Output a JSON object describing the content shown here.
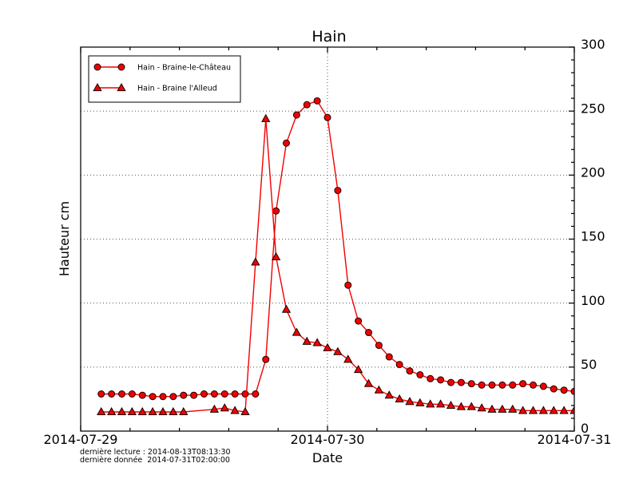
{
  "title": "Hain",
  "xlabel": "Date",
  "ylabel": "Hauteur cm",
  "footnotes": {
    "lecture": "dernière lecture : 2014-08-13T08:13:30",
    "donnee": "dernière donnée  2014-07-31T02:00:00"
  },
  "colors": {
    "series": "#f20000",
    "marker_fill": "#f20000",
    "marker_edge": "#1a0000",
    "grid": "#555555"
  },
  "chart_data": {
    "type": "line",
    "title": "Hain",
    "xlabel": "Date",
    "ylabel": "Hauteur cm",
    "x_unit": "hours since 2014-07-29T00:00:00",
    "xlim": [
      0,
      48
    ],
    "ylim": [
      0,
      300
    ],
    "x_ticks": [
      {
        "pos": 0,
        "label": "2014-07-29"
      },
      {
        "pos": 24,
        "label": "2014-07-30"
      },
      {
        "pos": 48,
        "label": "2014-07-31"
      }
    ],
    "y_ticks": [
      0,
      50,
      100,
      150,
      200,
      250,
      300
    ],
    "x_minor_step": 4.8,
    "y_minor_step": 10,
    "grid": "dotted",
    "legend_position": "upper left",
    "series": [
      {
        "name": "Hain - Braine-le-Château",
        "marker": "circle",
        "points": [
          [
            2,
            29
          ],
          [
            3,
            29
          ],
          [
            4,
            29
          ],
          [
            5,
            29
          ],
          [
            6,
            28
          ],
          [
            7,
            27
          ],
          [
            8,
            27
          ],
          [
            9,
            27
          ],
          [
            10,
            28
          ],
          [
            11,
            28
          ],
          [
            12,
            29
          ],
          [
            13,
            29
          ],
          [
            14,
            29
          ],
          [
            15,
            29
          ],
          [
            16,
            29
          ],
          [
            17,
            29
          ],
          [
            18,
            56
          ],
          [
            19,
            172
          ],
          [
            20,
            225
          ],
          [
            21,
            247
          ],
          [
            22,
            255
          ],
          [
            23,
            258
          ],
          [
            24,
            245
          ],
          [
            25,
            188
          ],
          [
            26,
            114
          ],
          [
            27,
            86
          ],
          [
            28,
            77
          ],
          [
            29,
            67
          ],
          [
            30,
            58
          ],
          [
            31,
            52
          ],
          [
            32,
            47
          ],
          [
            33,
            44
          ],
          [
            34,
            41
          ],
          [
            35,
            40
          ],
          [
            36,
            38
          ],
          [
            37,
            38
          ],
          [
            38,
            37
          ],
          [
            39,
            36
          ],
          [
            40,
            36
          ],
          [
            41,
            36
          ],
          [
            42,
            36
          ],
          [
            43,
            37
          ],
          [
            44,
            36
          ],
          [
            45,
            35
          ],
          [
            46,
            33
          ],
          [
            47,
            32
          ],
          [
            48,
            31
          ]
        ]
      },
      {
        "name": "Hain - Braine l'Alleud",
        "marker": "triangle",
        "points": [
          [
            2,
            15
          ],
          [
            3,
            15
          ],
          [
            4,
            15
          ],
          [
            5,
            15
          ],
          [
            6,
            15
          ],
          [
            7,
            15
          ],
          [
            8,
            15
          ],
          [
            9,
            15
          ],
          [
            10,
            15
          ],
          [
            13,
            17
          ],
          [
            14,
            18
          ],
          [
            15,
            16
          ],
          [
            16,
            15
          ],
          [
            17,
            132
          ],
          [
            18,
            244
          ],
          [
            19,
            136
          ],
          [
            20,
            95
          ],
          [
            21,
            77
          ],
          [
            22,
            70
          ],
          [
            23,
            69
          ],
          [
            24,
            65
          ],
          [
            25,
            62
          ],
          [
            26,
            56
          ],
          [
            27,
            48
          ],
          [
            28,
            37
          ],
          [
            29,
            32
          ],
          [
            30,
            28
          ],
          [
            31,
            25
          ],
          [
            32,
            23
          ],
          [
            33,
            22
          ],
          [
            34,
            21
          ],
          [
            35,
            21
          ],
          [
            36,
            20
          ],
          [
            37,
            19
          ],
          [
            38,
            19
          ],
          [
            39,
            18
          ],
          [
            40,
            17
          ],
          [
            41,
            17
          ],
          [
            42,
            17
          ],
          [
            43,
            16
          ],
          [
            44,
            16
          ],
          [
            45,
            16
          ],
          [
            46,
            16
          ],
          [
            47,
            16
          ],
          [
            48,
            16
          ]
        ]
      }
    ]
  }
}
